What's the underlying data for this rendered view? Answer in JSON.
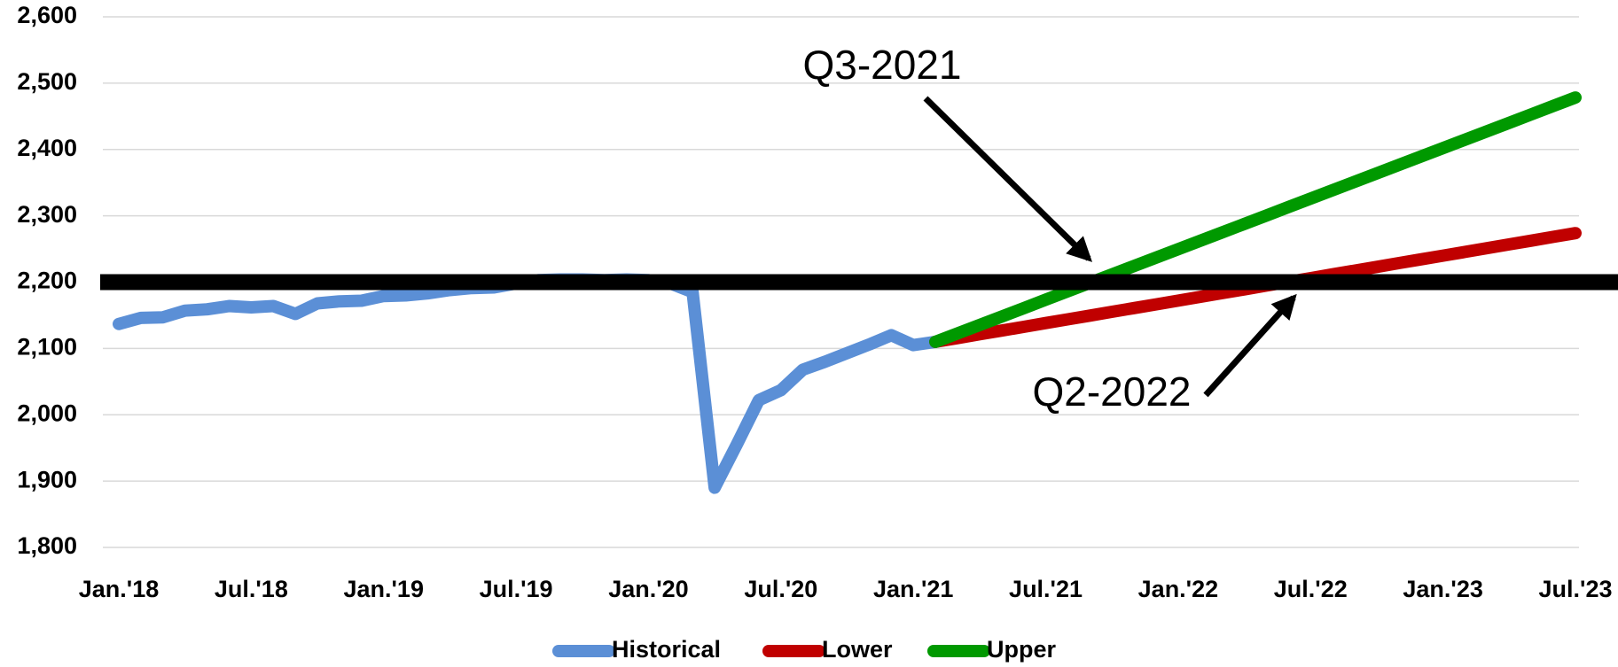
{
  "chart_data": {
    "type": "line",
    "categories": [
      "Jan.'18",
      null,
      null,
      null,
      null,
      null,
      "Jul.'18",
      null,
      null,
      null,
      null,
      null,
      "Jan.'19",
      null,
      null,
      null,
      null,
      null,
      "Jul.'19",
      null,
      null,
      null,
      null,
      null,
      "Jan.'20",
      null,
      null,
      null,
      null,
      null,
      "Jul.'20",
      null,
      null,
      null,
      null,
      null,
      "Jan.'21",
      null,
      null,
      null,
      null,
      null,
      "Jul.'21",
      null,
      null,
      null,
      null,
      null,
      "Jan.'22",
      null,
      null,
      null,
      null,
      null,
      "Jul.'22",
      null,
      null,
      null,
      null,
      null,
      "Jan.'23",
      null,
      null,
      null,
      null,
      null,
      "Jul.'23"
    ],
    "series": [
      {
        "name": "Historical",
        "color": "#5b8fd6",
        "values": [
          2137,
          2146,
          2147,
          2157,
          2159,
          2164,
          2162,
          2164,
          2152,
          2168,
          2171,
          2172,
          2179,
          2180,
          2183,
          2188,
          2191,
          2192,
          2198,
          2203,
          2204,
          2204,
          2203,
          2204,
          2203,
          2198,
          2185,
          1890,
          1955,
          2022,
          2037,
          2068,
          2080,
          2093,
          2106,
          2120,
          2105,
          2110,
          null,
          null,
          null,
          null,
          null,
          null,
          null,
          null,
          null,
          null,
          null,
          null,
          null,
          null,
          null,
          null,
          null,
          null,
          null,
          null,
          null,
          null,
          null,
          null,
          null,
          null,
          null,
          null,
          null
        ]
      },
      {
        "name": "Lower",
        "color": "#c00000",
        "values": [
          null,
          null,
          null,
          null,
          null,
          null,
          null,
          null,
          null,
          null,
          null,
          null,
          null,
          null,
          null,
          null,
          null,
          null,
          null,
          null,
          null,
          null,
          null,
          null,
          null,
          null,
          null,
          null,
          null,
          null,
          null,
          null,
          null,
          null,
          null,
          null,
          null,
          2110,
          2115.65,
          2121.3,
          2126.95,
          2132.6,
          2138.25,
          2143.9,
          2149.55,
          2155.2,
          2160.85,
          2166.5,
          2172.15,
          2177.8,
          2183.45,
          2189.1,
          2194.75,
          2200.4,
          2206.05,
          2211.7,
          2217.35,
          2223,
          2228.65,
          2234.3,
          2239.95,
          2245.6,
          2251.25,
          2256.9,
          2262.55,
          2268.2,
          2273.85
        ]
      },
      {
        "name": "Upper",
        "color": "#009900",
        "values": [
          null,
          null,
          null,
          null,
          null,
          null,
          null,
          null,
          null,
          null,
          null,
          null,
          null,
          null,
          null,
          null,
          null,
          null,
          null,
          null,
          null,
          null,
          null,
          null,
          null,
          null,
          null,
          null,
          null,
          null,
          null,
          null,
          null,
          null,
          null,
          null,
          null,
          2110,
          2122.7,
          2135.4,
          2148.1,
          2160.8,
          2173.5,
          2186.2,
          2198.9,
          2211.6,
          2224.3,
          2237,
          2249.7,
          2262.4,
          2275.1,
          2287.8,
          2300.5,
          2313.2,
          2325.9,
          2338.6,
          2351.3,
          2364,
          2376.7,
          2389.4,
          2402.1,
          2414.8,
          2427.5,
          2440.2,
          2452.9,
          2465.6,
          2478.3
        ]
      }
    ],
    "ylim": [
      1800,
      2600
    ],
    "yticks": [
      {
        "value": 1800,
        "label": "1,800"
      },
      {
        "value": 1900,
        "label": "1,900"
      },
      {
        "value": 2000,
        "label": "2,000"
      },
      {
        "value": 2100,
        "label": "2,100"
      },
      {
        "value": 2200,
        "label": "2,200"
      },
      {
        "value": 2300,
        "label": "2,300"
      },
      {
        "value": 2400,
        "label": "2,400"
      },
      {
        "value": 2500,
        "label": "2,500"
      },
      {
        "value": 2600,
        "label": "2,600"
      }
    ],
    "grid": true,
    "reference_line": {
      "value": 2200,
      "color": "#000000"
    },
    "annotations": [
      {
        "text": "Q3-2021"
      },
      {
        "text": "Q2-2022"
      }
    ],
    "legend": "bottom"
  }
}
